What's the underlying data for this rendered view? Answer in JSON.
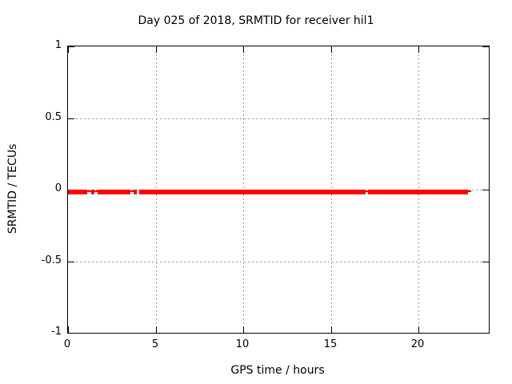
{
  "title": "Day 025 of 2018, SRMTID for receiver hil1",
  "chart_data": {
    "type": "line",
    "title": "Day 025 of 2018, SRMTID for receiver hil1",
    "xlabel": "GPS time / hours",
    "ylabel": "SRMTID / TECUs",
    "xlim": [
      0,
      24
    ],
    "ylim": [
      -1,
      1
    ],
    "xticks": [
      0,
      5,
      10,
      15,
      20
    ],
    "yticks": [
      1,
      0.5,
      0,
      -0.5,
      -1
    ],
    "grid": true,
    "legend": "none",
    "series": [
      {
        "name": "SRMTID",
        "color": "#ff0000",
        "y_value": 0,
        "thick_segments_hours": [
          [
            0.0,
            1.1
          ],
          [
            1.32,
            1.51
          ],
          [
            1.69,
            3.56
          ],
          [
            3.74,
            3.92
          ],
          [
            4.06,
            16.97
          ],
          [
            17.11,
            22.81
          ]
        ],
        "thin_segments_hours": [
          [
            1.1,
            1.32
          ],
          [
            1.51,
            1.69
          ],
          [
            3.56,
            3.74
          ],
          [
            16.97,
            17.11
          ],
          [
            22.81,
            22.99
          ]
        ]
      }
    ],
    "colors": {
      "background": "#ffffff",
      "frame": "#000000",
      "grid": "#9c9c9c",
      "text": "#000000",
      "accent": "#ff0000"
    }
  }
}
